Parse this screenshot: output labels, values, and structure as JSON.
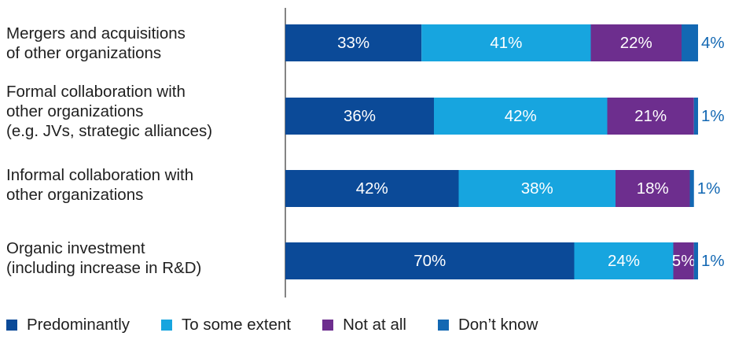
{
  "chart_data": {
    "type": "bar",
    "orientation": "horizontal",
    "stacked": true,
    "categories": [
      "Mergers and acquisitions\nof other organizations",
      "Formal collaboration with\nother organizations\n(e.g. JVs, strategic alliances)",
      "Informal collaboration with\nother organizations",
      "Organic investment\n(including increase in R&D)"
    ],
    "series": [
      {
        "name": "Predominantly",
        "color": "#0b4a98",
        "values": [
          33,
          36,
          42,
          70
        ],
        "labels": [
          "33%",
          "36%",
          "42%",
          "70%"
        ]
      },
      {
        "name": "To some extent",
        "color": "#17a5df",
        "values": [
          41,
          42,
          38,
          24
        ],
        "labels": [
          "41%",
          "42%",
          "38%",
          "24%"
        ]
      },
      {
        "name": "Not at all",
        "color": "#6d2e8e",
        "values": [
          22,
          21,
          18,
          5
        ],
        "labels": [
          "22%",
          "21%",
          "18%",
          "5%"
        ]
      },
      {
        "name": "Don’t know",
        "color": "#1368b3",
        "values": [
          4,
          1,
          1,
          1
        ],
        "labels": [
          "4%",
          "1%",
          "1%",
          "1%"
        ]
      }
    ],
    "xlim": [
      0,
      100
    ],
    "grid": false,
    "legend_position": "bottom"
  }
}
